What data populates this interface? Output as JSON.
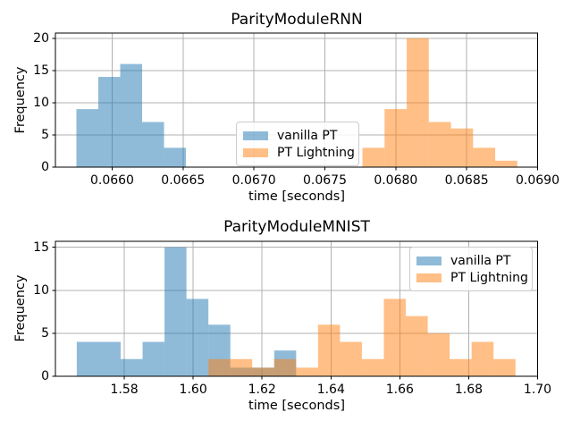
{
  "window": {
    "background": "#ffffff"
  },
  "colors": {
    "vanilla_pt": "rgba(31,119,180,0.5)",
    "pt_lightning": "rgba(255,127,14,0.5)",
    "grid": "#b0b0b0",
    "spine": "#000000",
    "tick": "#000000",
    "legend_border": "#cccccc",
    "text": "#000000"
  },
  "chart_data": [
    {
      "type": "histogram",
      "title": "ParityModuleRNN",
      "xlabel": "time [seconds]",
      "ylabel": "Frequency",
      "xlim": [
        0.0656,
        0.069
      ],
      "ylim": [
        0,
        20.8
      ],
      "xticks": [
        0.066,
        0.0665,
        0.067,
        0.0675,
        0.068,
        0.0685,
        0.069
      ],
      "xtick_labels": [
        "0.0660",
        "0.0665",
        "0.0670",
        "0.0675",
        "0.0680",
        "0.0685",
        "0.0690"
      ],
      "yticks": [
        0,
        5,
        10,
        15,
        20
      ],
      "ytick_labels": [
        "0",
        "5",
        "10",
        "15",
        "20"
      ],
      "grid": true,
      "legend_position": "center",
      "series": [
        {
          "name": "vanilla PT",
          "color_key": "vanilla_pt",
          "bin_start": 0.065748,
          "bin_width": 0.0001545,
          "counts": [
            9,
            14,
            16,
            7,
            3
          ]
        },
        {
          "name": "PT Lightning",
          "color_key": "pt_lightning",
          "bin_start": 0.067765,
          "bin_width": 0.000156,
          "counts": [
            3,
            9,
            20,
            7,
            6,
            3,
            1
          ]
        }
      ]
    },
    {
      "type": "histogram",
      "title": "ParityModuleMNIST",
      "xlabel": "time [seconds]",
      "ylabel": "Frequency",
      "xlim": [
        1.56,
        1.7
      ],
      "ylim": [
        0,
        15.7
      ],
      "xticks": [
        1.58,
        1.6,
        1.62,
        1.64,
        1.66,
        1.68,
        1.7
      ],
      "xtick_labels": [
        "1.58",
        "1.60",
        "1.62",
        "1.64",
        "1.66",
        "1.68",
        "1.70"
      ],
      "yticks": [
        0,
        5,
        10,
        15
      ],
      "ytick_labels": [
        "0",
        "5",
        "10",
        "15"
      ],
      "grid": true,
      "legend_position": "upper right",
      "series": [
        {
          "name": "vanilla PT",
          "color_key": "vanilla_pt",
          "bin_start": 1.5662,
          "bin_width": 0.00637,
          "counts": [
            4,
            4,
            2,
            4,
            15,
            9,
            6,
            1,
            1,
            3
          ]
        },
        {
          "name": "PT Lightning",
          "color_key": "pt_lightning",
          "bin_start": 1.6044,
          "bin_width": 0.00637,
          "counts": [
            2,
            2,
            1,
            2,
            1,
            6,
            4,
            2,
            9,
            7,
            5,
            2,
            4,
            2
          ]
        }
      ]
    }
  ]
}
